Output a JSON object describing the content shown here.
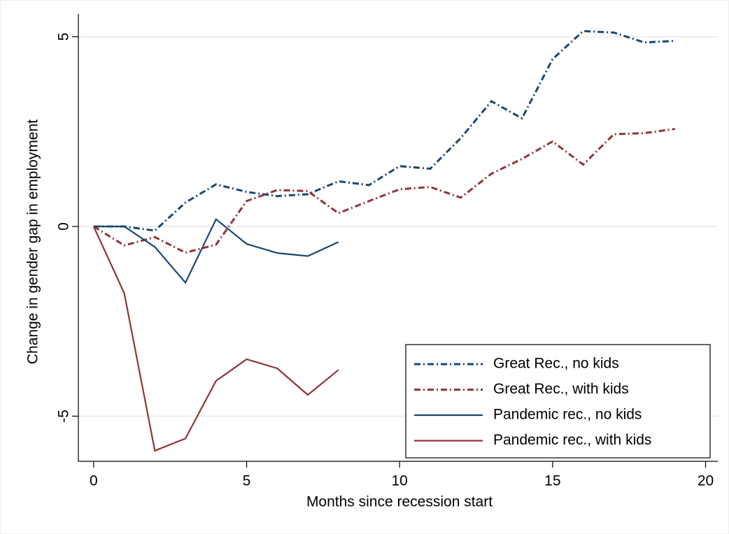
{
  "chart_data": {
    "type": "line",
    "x_label": "Months since recession start",
    "y_label": "Change in gender gap in employment",
    "xlim": [
      -0.5,
      20.4
    ],
    "ylim": [
      -6.19,
      5.6
    ],
    "xticks": [
      0,
      5,
      10,
      15,
      20
    ],
    "yticks": [
      -5,
      0,
      5
    ],
    "grid": true,
    "legend": "bottom right",
    "series": [
      {
        "name": "Great Rec., no kids",
        "color": "#1a476f",
        "dash": "dashdot",
        "x": [
          0,
          1,
          2,
          3,
          4,
          5,
          6,
          7,
          8,
          9,
          10,
          11,
          12,
          13,
          14,
          15,
          16,
          17,
          18,
          19
        ],
        "values": [
          0,
          0,
          -0.11,
          0.63,
          1.11,
          0.91,
          0.8,
          0.85,
          1.19,
          1.09,
          1.59,
          1.52,
          2.33,
          3.3,
          2.85,
          4.41,
          5.15,
          5.11,
          4.85,
          4.89
        ]
      },
      {
        "name": "Great Rec., with kids",
        "color": "#90353b",
        "dash": "dashdot",
        "x": [
          0,
          1,
          2,
          3,
          4,
          5,
          6,
          7,
          8,
          9,
          10,
          11,
          12,
          13,
          14,
          15,
          16,
          17,
          18,
          19
        ],
        "values": [
          0,
          -0.5,
          -0.28,
          -0.69,
          -0.48,
          0.67,
          0.96,
          0.93,
          0.35,
          0.67,
          0.98,
          1.04,
          0.76,
          1.39,
          1.78,
          2.24,
          1.63,
          2.43,
          2.46,
          2.57
        ]
      },
      {
        "name": "Pandemic rec., no kids",
        "color": "#1a476f",
        "dash": "solid",
        "x": [
          0,
          1,
          2,
          3,
          4,
          5,
          6,
          7,
          8
        ],
        "values": [
          0,
          0,
          -0.54,
          -1.48,
          0.19,
          -0.46,
          -0.7,
          -0.78,
          -0.41
        ]
      },
      {
        "name": "Pandemic rec., with kids",
        "color": "#90353b",
        "dash": "solid",
        "x": [
          0,
          1,
          2,
          3,
          4,
          5,
          6,
          7,
          8
        ],
        "values": [
          0,
          -1.76,
          -5.91,
          -5.59,
          -4.07,
          -3.5,
          -3.74,
          -4.44,
          -3.78
        ]
      }
    ]
  }
}
